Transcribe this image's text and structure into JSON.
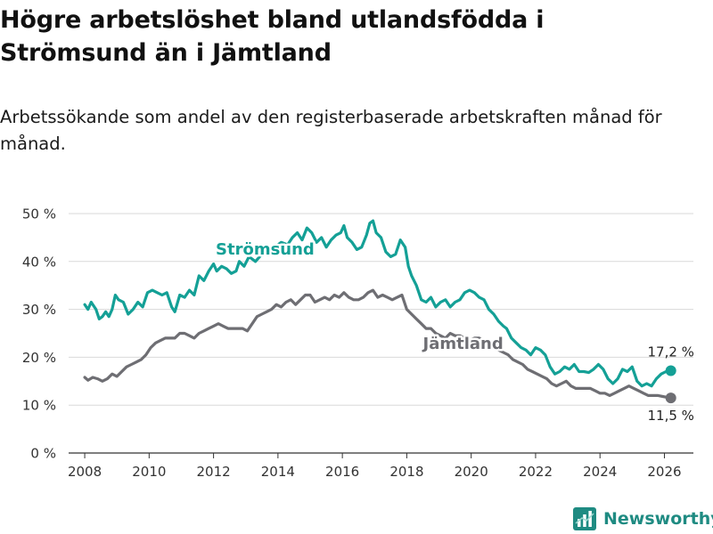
{
  "title": "Högre arbetslöshet bland utlandsfödda i Strömsund än i Jämtland",
  "subtitle": "Arbetssökande som andel av den registerbaserade arbetskraften månad för månad.",
  "brand": "Newsworthy",
  "colors": {
    "stromsund": "#14a096",
    "jamtland": "#6e6e73",
    "grid": "#d9d9d9",
    "axis": "#333333",
    "brand": "#1f8b82"
  },
  "chart_data": {
    "type": "line",
    "title": "Högre arbetslöshet bland utlandsfödda i Strömsund än i Jämtland",
    "xlabel": "",
    "ylabel": "",
    "xlim": [
      2007.5,
      2026.9
    ],
    "ylim": [
      0,
      50
    ],
    "x_ticks": [
      2008,
      2010,
      2012,
      2014,
      2016,
      2018,
      2020,
      2022,
      2024,
      2026
    ],
    "x_tick_labels": [
      "2008",
      "2010",
      "2012",
      "2014",
      "2016",
      "2018",
      "2020",
      "2022",
      "2024",
      "2026"
    ],
    "y_ticks": [
      0,
      10,
      20,
      30,
      40,
      50
    ],
    "y_tick_labels": [
      "0 %",
      "10 %",
      "20 %",
      "30 %",
      "40 %",
      "50 %"
    ],
    "grid": true,
    "series": [
      {
        "name": "Strömsund",
        "label": "Strömsund",
        "color": "#14a096",
        "end_label": "17,2 %",
        "points": [
          [
            2008.0,
            31
          ],
          [
            2008.1,
            30
          ],
          [
            2008.2,
            31.5
          ],
          [
            2008.35,
            30
          ],
          [
            2008.45,
            28
          ],
          [
            2008.55,
            28.5
          ],
          [
            2008.65,
            29.5
          ],
          [
            2008.75,
            28.5
          ],
          [
            2008.85,
            30
          ],
          [
            2008.95,
            33
          ],
          [
            2009.05,
            32
          ],
          [
            2009.2,
            31.5
          ],
          [
            2009.35,
            29
          ],
          [
            2009.5,
            30
          ],
          [
            2009.65,
            31.5
          ],
          [
            2009.8,
            30.5
          ],
          [
            2009.95,
            33.5
          ],
          [
            2010.1,
            34
          ],
          [
            2010.25,
            33.5
          ],
          [
            2010.4,
            33
          ],
          [
            2010.55,
            33.5
          ],
          [
            2010.7,
            30.5
          ],
          [
            2010.8,
            29.5
          ],
          [
            2010.95,
            33
          ],
          [
            2011.1,
            32.5
          ],
          [
            2011.25,
            34
          ],
          [
            2011.4,
            33
          ],
          [
            2011.55,
            37
          ],
          [
            2011.7,
            36
          ],
          [
            2011.85,
            38
          ],
          [
            2012.0,
            39.5
          ],
          [
            2012.1,
            38
          ],
          [
            2012.25,
            39
          ],
          [
            2012.4,
            38.5
          ],
          [
            2012.55,
            37.5
          ],
          [
            2012.7,
            38
          ],
          [
            2012.8,
            40
          ],
          [
            2012.95,
            39
          ],
          [
            2013.1,
            41
          ],
          [
            2013.3,
            40
          ],
          [
            2013.5,
            41.5
          ],
          [
            2013.7,
            42.5
          ],
          [
            2013.9,
            43
          ],
          [
            2014.1,
            44
          ],
          [
            2014.3,
            43.5
          ],
          [
            2014.45,
            45
          ],
          [
            2014.6,
            46
          ],
          [
            2014.75,
            44.5
          ],
          [
            2014.9,
            47
          ],
          [
            2015.05,
            46
          ],
          [
            2015.2,
            44
          ],
          [
            2015.35,
            45
          ],
          [
            2015.5,
            43
          ],
          [
            2015.65,
            44.5
          ],
          [
            2015.8,
            45.5
          ],
          [
            2015.95,
            46
          ],
          [
            2016.05,
            47.5
          ],
          [
            2016.15,
            45
          ],
          [
            2016.3,
            44
          ],
          [
            2016.45,
            42.5
          ],
          [
            2016.6,
            43
          ],
          [
            2016.75,
            45.5
          ],
          [
            2016.85,
            48
          ],
          [
            2016.95,
            48.5
          ],
          [
            2017.05,
            46
          ],
          [
            2017.2,
            45
          ],
          [
            2017.35,
            42
          ],
          [
            2017.5,
            41
          ],
          [
            2017.65,
            41.5
          ],
          [
            2017.8,
            44.5
          ],
          [
            2017.95,
            43
          ],
          [
            2018.05,
            39
          ],
          [
            2018.15,
            37
          ],
          [
            2018.3,
            35
          ],
          [
            2018.45,
            32
          ],
          [
            2018.6,
            31.5
          ],
          [
            2018.75,
            32.5
          ],
          [
            2018.9,
            30.5
          ],
          [
            2019.05,
            31.5
          ],
          [
            2019.2,
            32
          ],
          [
            2019.35,
            30.5
          ],
          [
            2019.5,
            31.5
          ],
          [
            2019.65,
            32
          ],
          [
            2019.8,
            33.5
          ],
          [
            2019.95,
            34
          ],
          [
            2020.1,
            33.5
          ],
          [
            2020.25,
            32.5
          ],
          [
            2020.4,
            32
          ],
          [
            2020.55,
            30
          ],
          [
            2020.7,
            29
          ],
          [
            2020.85,
            27.5
          ],
          [
            2021.0,
            26.5
          ],
          [
            2021.1,
            26
          ],
          [
            2021.25,
            24
          ],
          [
            2021.4,
            23
          ],
          [
            2021.55,
            22
          ],
          [
            2021.7,
            21.5
          ],
          [
            2021.85,
            20.5
          ],
          [
            2022.0,
            22
          ],
          [
            2022.15,
            21.5
          ],
          [
            2022.3,
            20.5
          ],
          [
            2022.45,
            18
          ],
          [
            2022.6,
            16.5
          ],
          [
            2022.75,
            17
          ],
          [
            2022.9,
            18
          ],
          [
            2023.05,
            17.5
          ],
          [
            2023.2,
            18.5
          ],
          [
            2023.35,
            17
          ],
          [
            2023.5,
            17
          ],
          [
            2023.65,
            16.8
          ],
          [
            2023.8,
            17.5
          ],
          [
            2023.95,
            18.5
          ],
          [
            2024.1,
            17.5
          ],
          [
            2024.25,
            15.5
          ],
          [
            2024.4,
            14.5
          ],
          [
            2024.55,
            15.5
          ],
          [
            2024.7,
            17.5
          ],
          [
            2024.85,
            17
          ],
          [
            2025.0,
            18
          ],
          [
            2025.15,
            15
          ],
          [
            2025.3,
            14
          ],
          [
            2025.45,
            14.5
          ],
          [
            2025.6,
            14
          ],
          [
            2025.75,
            15.5
          ],
          [
            2025.9,
            16.5
          ],
          [
            2026.05,
            17
          ],
          [
            2026.2,
            17.2
          ]
        ]
      },
      {
        "name": "Jämtland",
        "label": "Jämtland",
        "color": "#6e6e73",
        "end_label": "11,5 %",
        "points": [
          [
            2008.0,
            15.8
          ],
          [
            2008.1,
            15.2
          ],
          [
            2008.25,
            15.8
          ],
          [
            2008.4,
            15.5
          ],
          [
            2008.55,
            15
          ],
          [
            2008.7,
            15.5
          ],
          [
            2008.85,
            16.5
          ],
          [
            2009.0,
            16
          ],
          [
            2009.15,
            17
          ],
          [
            2009.3,
            18
          ],
          [
            2009.45,
            18.5
          ],
          [
            2009.6,
            19
          ],
          [
            2009.75,
            19.5
          ],
          [
            2009.9,
            20.5
          ],
          [
            2010.05,
            22
          ],
          [
            2010.2,
            23
          ],
          [
            2010.35,
            23.5
          ],
          [
            2010.5,
            24
          ],
          [
            2010.65,
            24
          ],
          [
            2010.8,
            24
          ],
          [
            2010.95,
            25
          ],
          [
            2011.1,
            25
          ],
          [
            2011.25,
            24.5
          ],
          [
            2011.4,
            24
          ],
          [
            2011.55,
            25
          ],
          [
            2011.7,
            25.5
          ],
          [
            2011.85,
            26
          ],
          [
            2012.0,
            26.5
          ],
          [
            2012.15,
            27
          ],
          [
            2012.3,
            26.5
          ],
          [
            2012.45,
            26
          ],
          [
            2012.6,
            26
          ],
          [
            2012.75,
            26
          ],
          [
            2012.9,
            26
          ],
          [
            2013.05,
            25.5
          ],
          [
            2013.2,
            27
          ],
          [
            2013.35,
            28.5
          ],
          [
            2013.5,
            29
          ],
          [
            2013.65,
            29.5
          ],
          [
            2013.8,
            30
          ],
          [
            2013.95,
            31
          ],
          [
            2014.1,
            30.5
          ],
          [
            2014.25,
            31.5
          ],
          [
            2014.4,
            32
          ],
          [
            2014.55,
            31
          ],
          [
            2014.7,
            32
          ],
          [
            2014.85,
            33
          ],
          [
            2015.0,
            33
          ],
          [
            2015.15,
            31.5
          ],
          [
            2015.3,
            32
          ],
          [
            2015.45,
            32.5
          ],
          [
            2015.6,
            32
          ],
          [
            2015.75,
            33
          ],
          [
            2015.9,
            32.5
          ],
          [
            2016.05,
            33.5
          ],
          [
            2016.2,
            32.5
          ],
          [
            2016.35,
            32
          ],
          [
            2016.5,
            32
          ],
          [
            2016.65,
            32.5
          ],
          [
            2016.8,
            33.5
          ],
          [
            2016.95,
            34
          ],
          [
            2017.1,
            32.5
          ],
          [
            2017.25,
            33
          ],
          [
            2017.4,
            32.5
          ],
          [
            2017.55,
            32
          ],
          [
            2017.7,
            32.5
          ],
          [
            2017.85,
            33
          ],
          [
            2018.0,
            30
          ],
          [
            2018.15,
            29
          ],
          [
            2018.3,
            28
          ],
          [
            2018.45,
            27
          ],
          [
            2018.6,
            26
          ],
          [
            2018.75,
            26
          ],
          [
            2018.9,
            25
          ],
          [
            2019.05,
            24.5
          ],
          [
            2019.2,
            24
          ],
          [
            2019.35,
            25
          ],
          [
            2019.5,
            24.5
          ],
          [
            2019.65,
            24.5
          ],
          [
            2019.8,
            24
          ],
          [
            2019.95,
            23.5
          ],
          [
            2020.1,
            24
          ],
          [
            2020.25,
            24
          ],
          [
            2020.4,
            23.5
          ],
          [
            2020.55,
            23
          ],
          [
            2020.7,
            22
          ],
          [
            2020.85,
            21.5
          ],
          [
            2021.0,
            21
          ],
          [
            2021.15,
            20.5
          ],
          [
            2021.3,
            19.5
          ],
          [
            2021.45,
            19
          ],
          [
            2021.6,
            18.5
          ],
          [
            2021.75,
            17.5
          ],
          [
            2021.9,
            17
          ],
          [
            2022.05,
            16.5
          ],
          [
            2022.2,
            16
          ],
          [
            2022.35,
            15.5
          ],
          [
            2022.5,
            14.5
          ],
          [
            2022.65,
            14
          ],
          [
            2022.8,
            14.5
          ],
          [
            2022.95,
            15
          ],
          [
            2023.1,
            14
          ],
          [
            2023.25,
            13.5
          ],
          [
            2023.4,
            13.5
          ],
          [
            2023.55,
            13.5
          ],
          [
            2023.7,
            13.5
          ],
          [
            2023.85,
            13
          ],
          [
            2024.0,
            12.5
          ],
          [
            2024.15,
            12.5
          ],
          [
            2024.3,
            12
          ],
          [
            2024.45,
            12.5
          ],
          [
            2024.6,
            13
          ],
          [
            2024.75,
            13.5
          ],
          [
            2024.9,
            14
          ],
          [
            2025.05,
            13.5
          ],
          [
            2025.2,
            13
          ],
          [
            2025.35,
            12.5
          ],
          [
            2025.5,
            12
          ],
          [
            2025.65,
            12
          ],
          [
            2025.8,
            12
          ],
          [
            2025.95,
            11.8
          ],
          [
            2026.1,
            11.6
          ],
          [
            2026.2,
            11.5
          ]
        ]
      }
    ]
  }
}
